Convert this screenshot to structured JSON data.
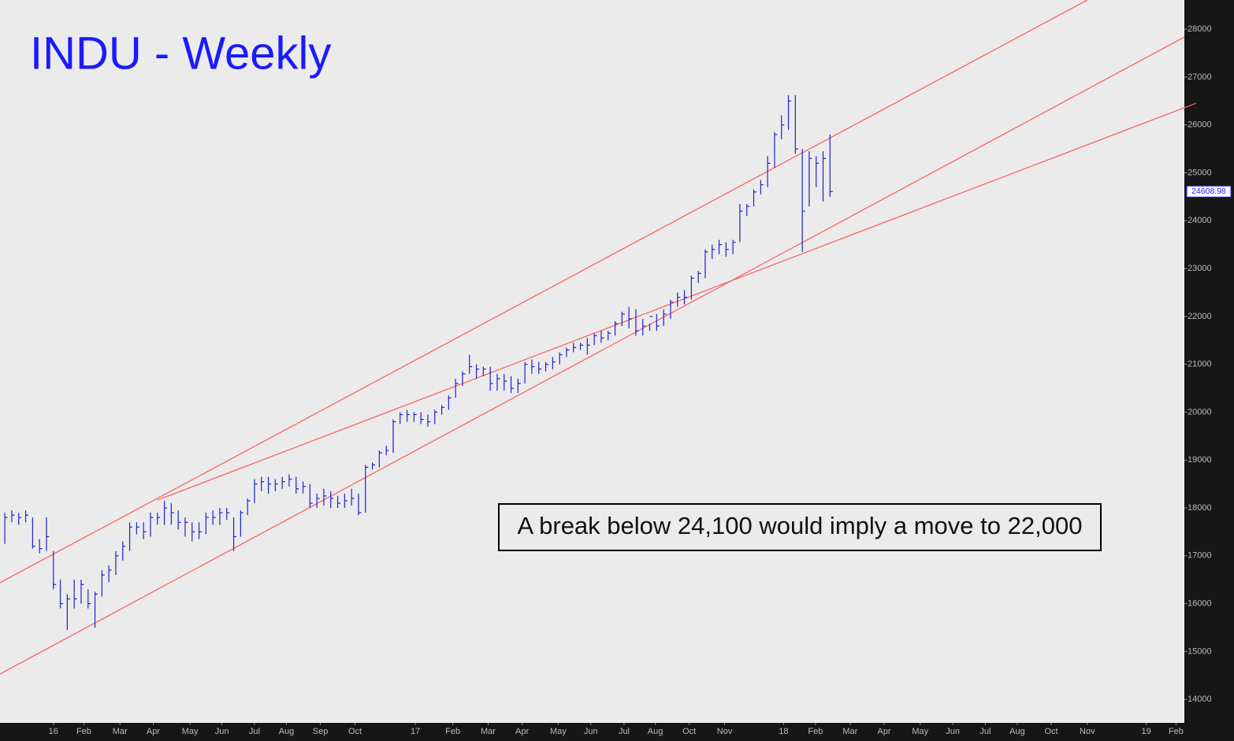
{
  "chart_data": {
    "type": "ohlc",
    "title": "INDU - Weekly",
    "annotation": "A break below 24,100 would imply a move to 22,000",
    "color": "#2020d0",
    "trendline_color": "#ff5a5a",
    "x": [
      -7,
      -6,
      -5,
      -4,
      -3,
      -2,
      -1,
      0,
      1,
      2,
      3,
      4,
      5,
      6,
      7,
      8,
      9,
      10,
      11,
      12,
      13,
      14,
      15,
      16,
      17,
      18,
      19,
      20,
      21,
      22,
      23,
      24,
      25,
      26,
      27,
      28,
      29,
      30,
      31,
      32,
      33,
      34,
      35,
      36,
      37,
      38,
      39,
      40,
      41,
      42,
      43,
      44,
      45,
      46,
      47,
      48,
      49,
      50,
      51,
      52,
      53,
      54,
      55,
      56,
      57,
      58,
      59,
      60,
      61,
      62,
      63,
      64,
      65,
      66,
      67,
      68,
      69,
      70,
      71,
      72,
      73,
      74,
      75,
      76,
      77,
      78,
      79,
      80,
      81,
      82,
      83,
      84,
      85,
      86,
      87,
      88,
      89,
      90,
      91,
      92,
      93,
      94,
      95,
      96,
      97,
      98,
      99,
      100,
      101,
      102,
      103,
      104,
      105,
      106,
      107,
      108,
      109,
      110,
      111,
      112
    ],
    "high": [
      17900,
      17950,
      17900,
      17950,
      17800,
      17350,
      17800,
      17100,
      16500,
      16200,
      16500,
      16500,
      16300,
      16250,
      16700,
      16800,
      17100,
      17300,
      17700,
      17700,
      17700,
      17900,
      17900,
      18150,
      18100,
      17950,
      17800,
      17700,
      17700,
      17900,
      17950,
      18000,
      18000,
      17800,
      17950,
      18200,
      18600,
      18650,
      18650,
      18600,
      18650,
      18700,
      18650,
      18550,
      18500,
      18300,
      18400,
      18350,
      18250,
      18300,
      18400,
      18300,
      18900,
      18950,
      19200,
      19300,
      19850,
      20000,
      20050,
      20000,
      20000,
      19950,
      20050,
      20150,
      20350,
      20700,
      20850,
      21200,
      21000,
      20950,
      20950,
      20800,
      20800,
      20750,
      20700,
      21050,
      21100,
      21050,
      21050,
      21150,
      21250,
      21350,
      21450,
      21450,
      21550,
      21650,
      21700,
      21700,
      21900,
      22100,
      22200,
      22150,
      21950,
      21850,
      22050,
      22150,
      22350,
      22500,
      22550,
      22850,
      22950,
      23400,
      23500,
      23600,
      23550,
      23600,
      24350,
      24350,
      24650,
      24850,
      25350,
      25850,
      26200,
      26620,
      26620,
      25500,
      25450,
      25350,
      25450,
      25800
    ],
    "low": [
      17250,
      17700,
      17650,
      17700,
      17150,
      17050,
      17100,
      16300,
      15900,
      15450,
      15900,
      16000,
      15900,
      15500,
      16150,
      16450,
      16600,
      16900,
      17100,
      17450,
      17350,
      17400,
      17650,
      17650,
      17650,
      17550,
      17400,
      17300,
      17350,
      17450,
      17650,
      17650,
      17750,
      17100,
      17400,
      17850,
      18100,
      18350,
      18300,
      18350,
      18400,
      18450,
      18300,
      18300,
      18000,
      18000,
      18050,
      18000,
      18000,
      18000,
      18050,
      17850,
      17900,
      18800,
      18850,
      19100,
      19150,
      19750,
      19800,
      19800,
      19750,
      19700,
      19750,
      19950,
      20050,
      20300,
      20550,
      20800,
      20700,
      20750,
      20450,
      20450,
      20450,
      20400,
      20400,
      20600,
      20800,
      20800,
      20850,
      20900,
      21000,
      21150,
      21250,
      21300,
      21200,
      21400,
      21450,
      21500,
      21600,
      21800,
      21750,
      21600,
      21600,
      21700,
      21700,
      21800,
      21950,
      22200,
      22250,
      22350,
      22700,
      22800,
      23200,
      23300,
      23250,
      23300,
      23550,
      24100,
      24300,
      24550,
      24700,
      25100,
      25700,
      25900,
      25400,
      23350,
      24300,
      24700,
      24400,
      24500
    ],
    "close": [
      17800,
      17850,
      17800,
      17850,
      17200,
      17150,
      17400,
      16400,
      16000,
      16100,
      16100,
      16400,
      16000,
      16200,
      16600,
      16700,
      17000,
      17200,
      17600,
      17600,
      17500,
      17800,
      17800,
      18000,
      17900,
      17700,
      17700,
      17500,
      17500,
      17800,
      17800,
      17900,
      17900,
      17400,
      17900,
      18150,
      18500,
      18550,
      18500,
      18500,
      18550,
      18600,
      18400,
      18450,
      18100,
      18200,
      18250,
      18200,
      18100,
      18150,
      18200,
      17900,
      18850,
      18900,
      19150,
      19200,
      19800,
      19950,
      19950,
      19950,
      19850,
      19800,
      20000,
      20100,
      20300,
      20600,
      20800,
      20950,
      20900,
      20900,
      20600,
      20700,
      20650,
      20500,
      20600,
      21000,
      20950,
      20900,
      21000,
      21050,
      21200,
      21300,
      21350,
      21400,
      21400,
      21600,
      21550,
      21650,
      21850,
      22050,
      21950,
      21700,
      21800,
      22000,
      21800,
      22050,
      22300,
      22400,
      22400,
      22800,
      22900,
      23350,
      23400,
      23500,
      23400,
      23550,
      24200,
      24300,
      24600,
      24750,
      25200,
      25800,
      26000,
      26500,
      25500,
      24200,
      25300,
      25200,
      25300,
      24608.98
    ],
    "trendlines": [
      {
        "x": [
          -7.7,
          149.1
        ],
        "y": [
          16438,
          28609
        ]
      },
      {
        "x": [
          -7.7,
          163.1
        ],
        "y": [
          14530,
          27836
        ]
      },
      {
        "x": [
          15,
          164.8
        ],
        "y": [
          18164,
          26454
        ]
      }
    ],
    "xlim": [
      -7.7,
      163.1
    ],
    "ylim": [
      13510,
      28610
    ],
    "yticks": [
      14000,
      15000,
      16000,
      17000,
      18000,
      19000,
      20000,
      21000,
      22000,
      23000,
      24000,
      25000,
      26000,
      27000,
      28000
    ],
    "xticks": [
      {
        "value": 0,
        "label": "16"
      },
      {
        "value": 4.4,
        "label": "Feb"
      },
      {
        "value": 9.6,
        "label": "Mar"
      },
      {
        "value": 14.4,
        "label": "Apr"
      },
      {
        "value": 19.7,
        "label": "May"
      },
      {
        "value": 24.3,
        "label": "Jun"
      },
      {
        "value": 29,
        "label": "Jul"
      },
      {
        "value": 33.6,
        "label": "Aug"
      },
      {
        "value": 38.5,
        "label": "Sep"
      },
      {
        "value": 43.5,
        "label": "Oct"
      },
      {
        "value": 52.2,
        "label": "17"
      },
      {
        "value": 57.6,
        "label": "Feb"
      },
      {
        "value": 62.7,
        "label": "Mar"
      },
      {
        "value": 67.6,
        "label": "Apr"
      },
      {
        "value": 72.8,
        "label": "May"
      },
      {
        "value": 77.5,
        "label": "Jun"
      },
      {
        "value": 82.3,
        "label": "Jul"
      },
      {
        "value": 86.8,
        "label": "Aug"
      },
      {
        "value": 91.7,
        "label": "Oct"
      },
      {
        "value": 96.8,
        "label": "Nov"
      },
      {
        "value": 105.3,
        "label": "18"
      },
      {
        "value": 109.9,
        "label": "Feb"
      },
      {
        "value": 114.9,
        "label": "Mar"
      },
      {
        "value": 119.8,
        "label": "Apr"
      },
      {
        "value": 125,
        "label": "May"
      },
      {
        "value": 129.7,
        "label": "Jun"
      },
      {
        "value": 134.4,
        "label": "Jul"
      },
      {
        "value": 139,
        "label": "Aug"
      },
      {
        "value": 143.9,
        "label": "Oct"
      },
      {
        "value": 149.1,
        "label": "Nov"
      },
      {
        "value": 157.6,
        "label": "19"
      },
      {
        "value": 161.9,
        "label": "Feb"
      }
    ]
  }
}
